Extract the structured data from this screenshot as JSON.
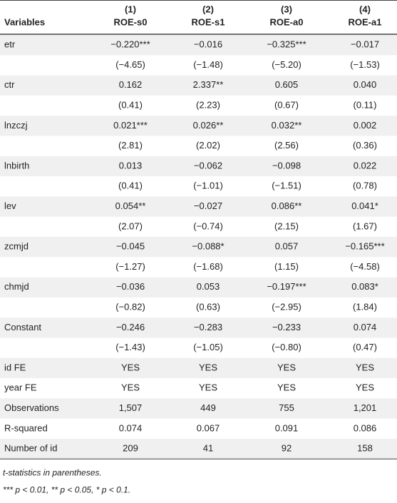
{
  "header": {
    "numbers": [
      "(1)",
      "(2)",
      "(3)",
      "(4)"
    ],
    "variables_label": "Variables",
    "columns": [
      "ROE-s0",
      "ROE-s1",
      "ROE-a0",
      "ROE-a1"
    ]
  },
  "table": {
    "rows": [
      [
        "etr",
        "−0.220***",
        "−0.016",
        "−0.325***",
        "−0.017"
      ],
      [
        "",
        "(−4.65)",
        "(−1.48)",
        "(−5.20)",
        "(−1.53)"
      ],
      [
        "ctr",
        "0.162",
        "2.337**",
        "0.605",
        "0.040"
      ],
      [
        "",
        "(0.41)",
        "(2.23)",
        "(0.67)",
        "(0.11)"
      ],
      [
        "lnzczj",
        "0.021***",
        "0.026**",
        "0.032**",
        "0.002"
      ],
      [
        "",
        "(2.81)",
        "(2.02)",
        "(2.56)",
        "(0.36)"
      ],
      [
        "lnbirth",
        "0.013",
        "−0.062",
        "−0.098",
        "0.022"
      ],
      [
        "",
        "(0.41)",
        "(−1.01)",
        "(−1.51)",
        "(0.78)"
      ],
      [
        "lev",
        "0.054**",
        "−0.027",
        "0.086**",
        "0.041*"
      ],
      [
        "",
        "(2.07)",
        "(−0.74)",
        "(2.15)",
        "(1.67)"
      ],
      [
        "zcmjd",
        "−0.045",
        "−0.088*",
        "0.057",
        "−0.165***"
      ],
      [
        "",
        "(−1.27)",
        "(−1.68)",
        "(1.15)",
        "(−4.58)"
      ],
      [
        "chmjd",
        "−0.036",
        "0.053",
        "−0.197***",
        "0.083*"
      ],
      [
        "",
        "(−0.82)",
        "(0.63)",
        "(−2.95)",
        "(1.84)"
      ],
      [
        "Constant",
        "−0.246",
        "−0.283",
        "−0.233",
        "0.074"
      ],
      [
        "",
        "(−1.43)",
        "(−1.05)",
        "(−0.80)",
        "(0.47)"
      ],
      [
        "id FE",
        "YES",
        "YES",
        "YES",
        "YES"
      ],
      [
        "year FE",
        "YES",
        "YES",
        "YES",
        "YES"
      ],
      [
        "Observations",
        "1,507",
        "449",
        "755",
        "1,201"
      ],
      [
        "R-squared",
        "0.074",
        "0.067",
        "0.091",
        "0.086"
      ],
      [
        "Number of id",
        "209",
        "41",
        "92",
        "158"
      ]
    ]
  },
  "footnotes": [
    "t-statistics in parentheses.",
    "*** p < 0.01, ** p < 0.05, * p < 0.1."
  ]
}
